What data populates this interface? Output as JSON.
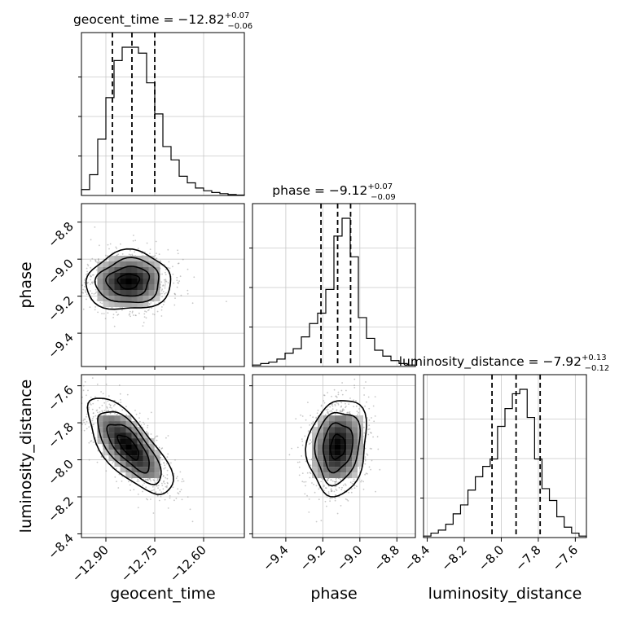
{
  "chart_data": {
    "type": "corner",
    "grid": true,
    "parameters": [
      {
        "name": "geocent_time",
        "title": {
          "label": "geocent_time",
          "median": "−12.82",
          "plus": "+0.07",
          "minus": "−0.06"
        },
        "range": [
          -12.975,
          -12.475
        ],
        "ticks": [
          -12.9,
          -12.75,
          -12.6
        ],
        "tick_labels": [
          "−12.90",
          "−12.75",
          "−12.60"
        ],
        "quantiles": [
          -12.88,
          -12.82,
          -12.75
        ],
        "hist_bins": [
          0.04,
          0.14,
          0.38,
          0.66,
          0.91,
          1.0,
          1.0,
          0.96,
          0.76,
          0.55,
          0.33,
          0.24,
          0.13,
          0.085,
          0.05,
          0.032,
          0.02,
          0.012,
          0.006,
          0.003
        ]
      },
      {
        "name": "phase",
        "title": {
          "label": "phase",
          "median": "−9.12",
          "plus": "+0.07",
          "minus": "−0.09"
        },
        "range": [
          -9.58,
          -8.7
        ],
        "ticks": [
          -9.4,
          -9.2,
          -9.0,
          -8.8
        ],
        "tick_labels": [
          "−9.4",
          "−9.2",
          "−9.0",
          "−8.8"
        ],
        "quantiles": [
          -9.21,
          -9.12,
          -9.05
        ],
        "hist_bins": [
          0.01,
          0.02,
          0.03,
          0.05,
          0.09,
          0.12,
          0.2,
          0.29,
          0.36,
          0.52,
          0.88,
          1.0,
          0.74,
          0.33,
          0.19,
          0.11,
          0.07,
          0.04,
          0.02,
          0.01
        ]
      },
      {
        "name": "luminosity_distance",
        "title": {
          "label": "luminosity_distance",
          "median": "−7.92",
          "plus": "+0.13",
          "minus": "−0.12"
        },
        "range": [
          -8.42,
          -7.54
        ],
        "ticks": [
          -8.4,
          -8.2,
          -8.0,
          -7.8,
          -7.6
        ],
        "tick_labels": [
          "−8.4",
          "−8.2",
          "−8.0",
          "−7.8",
          "−7.6"
        ],
        "quantiles": [
          -8.05,
          -7.92,
          -7.79
        ],
        "hist_bins": [
          0.01,
          0.03,
          0.05,
          0.09,
          0.16,
          0.22,
          0.32,
          0.41,
          0.48,
          0.53,
          0.75,
          0.87,
          0.97,
          1.0,
          0.81,
          0.53,
          0.33,
          0.25,
          0.14,
          0.07,
          0.03,
          0.01
        ]
      }
    ],
    "pairs": [
      {
        "x": "geocent_time",
        "y": "phase",
        "mean": [
          -12.83,
          -9.12
        ],
        "sd": [
          0.065,
          0.08
        ],
        "corr": 0.05,
        "seed": 11
      },
      {
        "x": "geocent_time",
        "y": "luminosity_distance",
        "mean": [
          -12.83,
          -7.93
        ],
        "sd": [
          0.065,
          0.13
        ],
        "corr": -0.72,
        "seed": 23
      },
      {
        "x": "phase",
        "y": "luminosity_distance",
        "mean": [
          -9.12,
          -7.93
        ],
        "sd": [
          0.08,
          0.13
        ],
        "corr": 0.15,
        "seed": 37
      }
    ],
    "contour_levels": [
      0.5,
      1.0,
      1.5,
      2.0
    ]
  }
}
